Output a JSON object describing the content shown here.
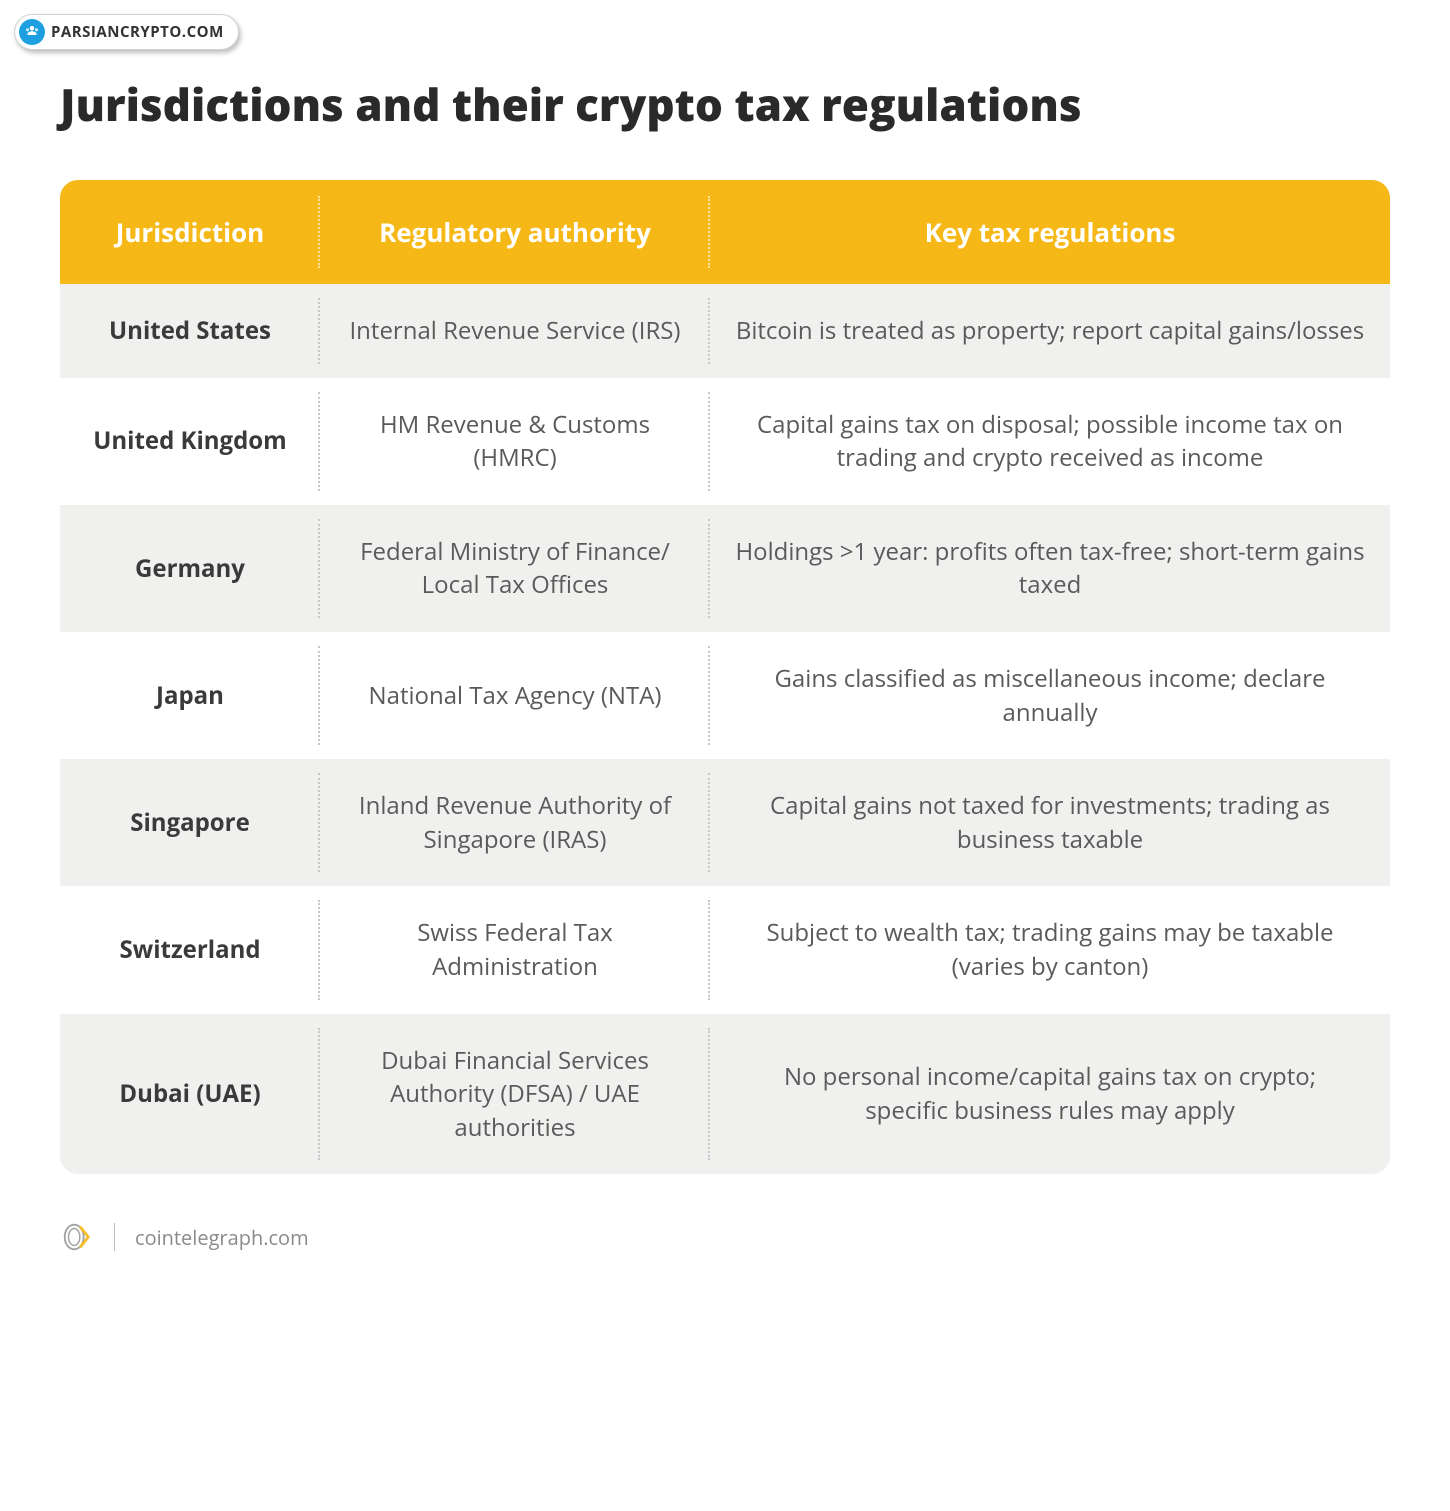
{
  "badge": {
    "text": "PARSIANCRYPTO.COM"
  },
  "title": "Jurisdictions and their crypto tax regulations",
  "table": {
    "header_bg": "#f6b817",
    "row_even_bg": "#f0f0ef",
    "row_odd_bg": "#ffffff",
    "columns": [
      "Jurisdiction",
      "Regulatory authority",
      "Key tax regulations"
    ],
    "rows": [
      {
        "jurisdiction": "United States",
        "authority": "Internal Revenue Service (IRS)",
        "regulations": "Bitcoin is treated as property; report capital gains/losses"
      },
      {
        "jurisdiction": "United Kingdom",
        "authority": "HM Revenue & Customs (HMRC)",
        "regulations": "Capital gains tax on disposal; possible income tax on trading and crypto received as income"
      },
      {
        "jurisdiction": "Germany",
        "authority": "Federal Ministry of Finance/ Local Tax Offices",
        "regulations": "Holdings >1 year: profits often tax-free; short-term gains taxed"
      },
      {
        "jurisdiction": "Japan",
        "authority": "National Tax Agency (NTA)",
        "regulations": "Gains classified as miscellaneous income; declare annually"
      },
      {
        "jurisdiction": "Singapore",
        "authority": "Inland Revenue Authority of Singapore (IRAS)",
        "regulations": "Capital gains not taxed for investments; trading as business taxable"
      },
      {
        "jurisdiction": "Switzerland",
        "authority": "Swiss Federal Tax Administration",
        "regulations": "Subject to wealth tax; trading gains may be taxable (varies by canton)"
      },
      {
        "jurisdiction": "Dubai (UAE)",
        "authority": "Dubai Financial Services Authority (DFSA) / UAE authorities",
        "regulations": "No personal income/capital gains tax on crypto;\nspecific business rules may apply"
      }
    ]
  },
  "footer": {
    "source": "cointelegraph.com"
  }
}
